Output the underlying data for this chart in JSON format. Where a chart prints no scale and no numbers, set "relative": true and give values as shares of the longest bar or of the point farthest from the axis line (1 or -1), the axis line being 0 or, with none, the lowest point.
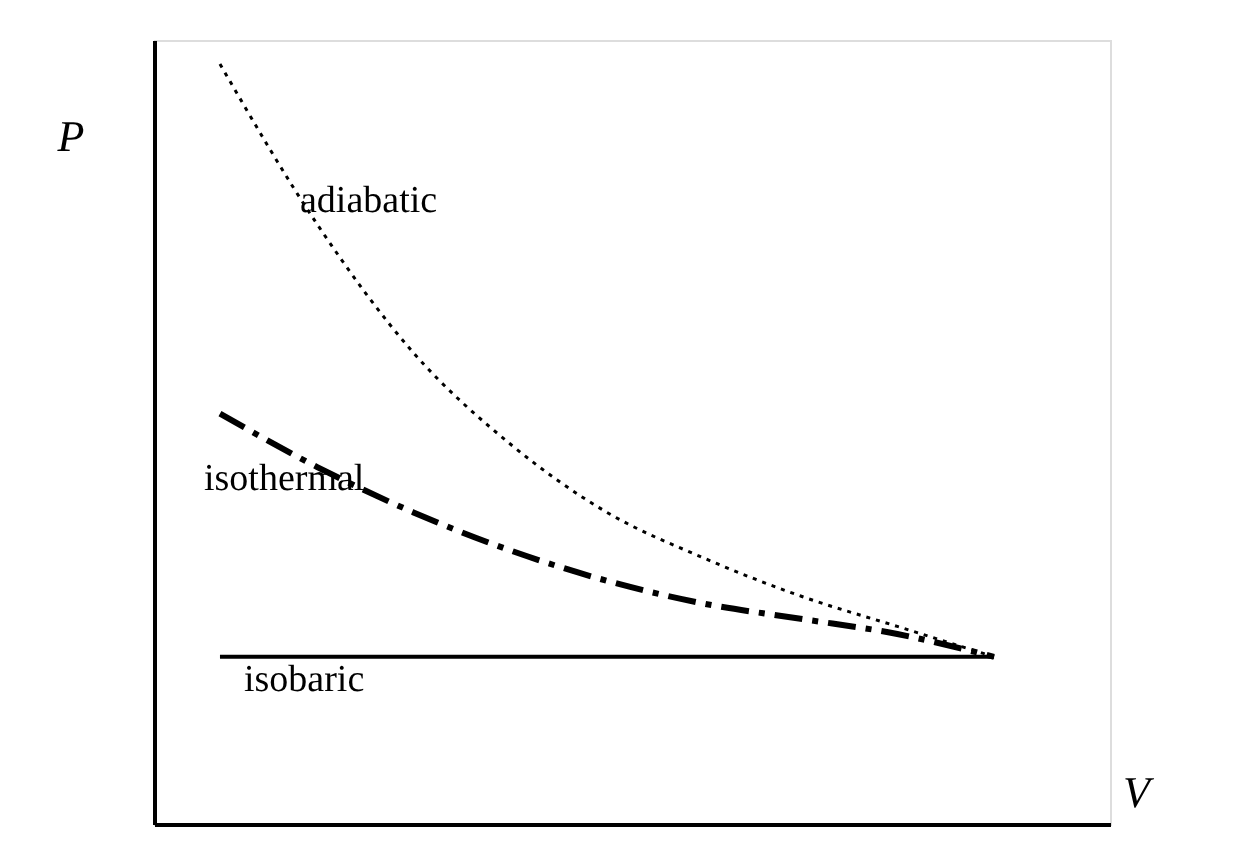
{
  "chart_data": {
    "type": "line",
    "xlabel": "V",
    "ylabel": "P",
    "relative": true,
    "grid": false,
    "categories": [
      null,
      null,
      null,
      null,
      null,
      null,
      null,
      null,
      null
    ],
    "series": [
      {
        "name": "adiabatic",
        "color": "#000000",
        "line_style": "dotted",
        "values": [
          1,
          0.79,
          0.62,
          0.5,
          0.41,
          0.35,
          0.3,
          0.26,
          0.22
        ]
      },
      {
        "name": "isothermal",
        "color": "#000000",
        "line_style": "dashed",
        "values": [
          0.54,
          0.47,
          0.41,
          0.36,
          0.32,
          0.29,
          0.27,
          0.25,
          0.22
        ]
      },
      {
        "name": "isobaric",
        "color": "#000000",
        "line_style": "solid",
        "values": [
          0.22,
          0.22,
          0.22,
          0.22,
          0.22,
          0.22,
          0.22,
          0.22,
          0.22
        ]
      }
    ]
  }
}
